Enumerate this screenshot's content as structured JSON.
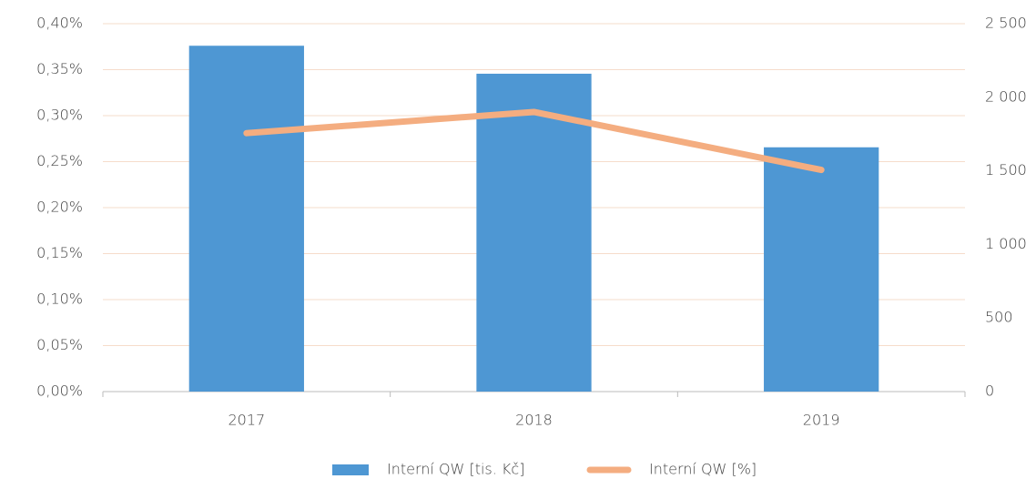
{
  "chart_data": {
    "type": "bar-line",
    "categories": [
      "2017",
      "2018",
      "2019"
    ],
    "series": [
      {
        "name": "Interní QW [tis. Kč]",
        "type": "bar",
        "axis": "y2",
        "color": "#4e97d3",
        "values": [
          2350,
          2160,
          1660
        ]
      },
      {
        "name": "Interní QW [%]",
        "type": "line",
        "color": "#f4ad80",
        "values": [
          0.281,
          0.304,
          0.241
        ]
      }
    ],
    "ylim": [
      0,
      0.4
    ],
    "yticks": [
      {
        "value": 0,
        "label": "0,00%"
      },
      {
        "value": 0.05,
        "label": "0,05%"
      },
      {
        "value": 0.1,
        "label": "0,10%"
      },
      {
        "value": 0.15,
        "label": "0,15%"
      },
      {
        "value": 0.2,
        "label": "0,20%"
      },
      {
        "value": 0.25,
        "label": "0,25%"
      },
      {
        "value": 0.3,
        "label": "0,30%"
      },
      {
        "value": 0.35,
        "label": "0,35%"
      },
      {
        "value": 0.4,
        "label": "0,40%"
      }
    ],
    "y2lim": [
      0,
      2500
    ],
    "y2ticks": [
      0,
      500,
      {
        "value": 1000,
        "label": "1 000"
      },
      {
        "value": 1500,
        "label": "1 500"
      },
      {
        "value": 2000,
        "label": "2 000"
      },
      {
        "value": 2500,
        "label": "2 500"
      }
    ],
    "grid": true,
    "legend": "bottom"
  }
}
